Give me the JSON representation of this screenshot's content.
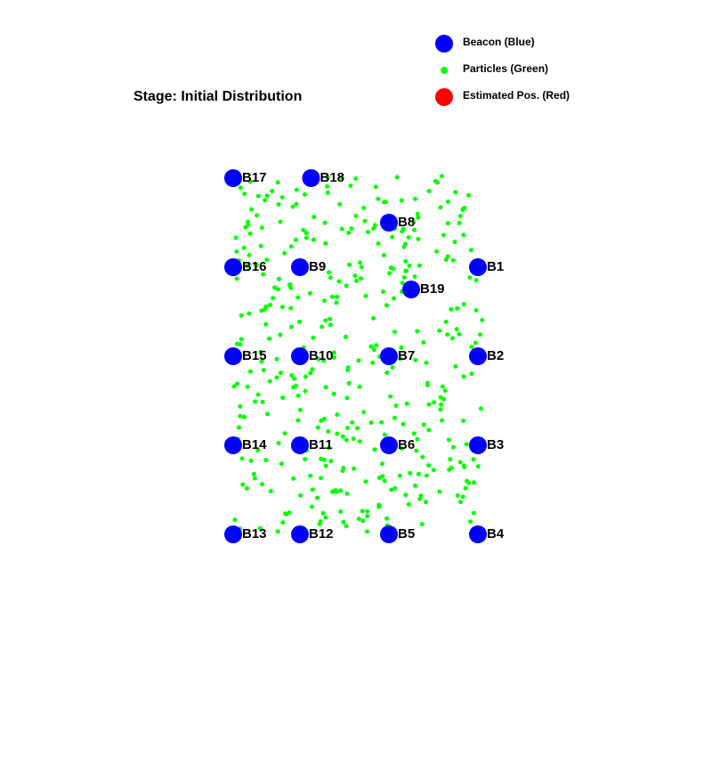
{
  "stage": {
    "text": "Stage: Initial Distribution"
  },
  "legend": {
    "items": [
      {
        "key": "beacon",
        "label": "Beacon (Blue)",
        "color": "#0000ff",
        "shape": "large-circle"
      },
      {
        "key": "particle",
        "label": "Particles (Green)",
        "color": "#00ff00",
        "shape": "small-circle"
      },
      {
        "key": "estimate",
        "label": "Estimated Pos. (Red)",
        "color": "#ff0000",
        "shape": "large-circle"
      }
    ]
  },
  "colors": {
    "beacon": "#0000ff",
    "particle": "#00ff00",
    "estimate": "#ff0000",
    "text": "#000000"
  },
  "beacons": [
    {
      "id": "B1",
      "x": 11,
      "y": 12
    },
    {
      "id": "B2",
      "x": 11,
      "y": 8
    },
    {
      "id": "B3",
      "x": 11,
      "y": 4
    },
    {
      "id": "B4",
      "x": 11,
      "y": 0
    },
    {
      "id": "B5",
      "x": 7,
      "y": 0
    },
    {
      "id": "B6",
      "x": 7,
      "y": 4
    },
    {
      "id": "B7",
      "x": 7,
      "y": 8
    },
    {
      "id": "B8",
      "x": 7,
      "y": 14
    },
    {
      "id": "B9",
      "x": 3,
      "y": 12
    },
    {
      "id": "B10",
      "x": 3,
      "y": 8
    },
    {
      "id": "B11",
      "x": 3,
      "y": 4
    },
    {
      "id": "B12",
      "x": 3,
      "y": 0
    },
    {
      "id": "B13",
      "x": 0,
      "y": 0
    },
    {
      "id": "B14",
      "x": 0,
      "y": 4
    },
    {
      "id": "B15",
      "x": 0,
      "y": 8
    },
    {
      "id": "B16",
      "x": 0,
      "y": 12
    },
    {
      "id": "B17",
      "x": 0,
      "y": 16
    },
    {
      "id": "B18",
      "x": 3.5,
      "y": 16
    },
    {
      "id": "B19",
      "x": 8,
      "y": 11
    }
  ],
  "particles": {
    "count": 400,
    "x_range": [
      0,
      11.2
    ],
    "y_range": [
      0.1,
      16.1
    ],
    "seed": 7
  }
}
